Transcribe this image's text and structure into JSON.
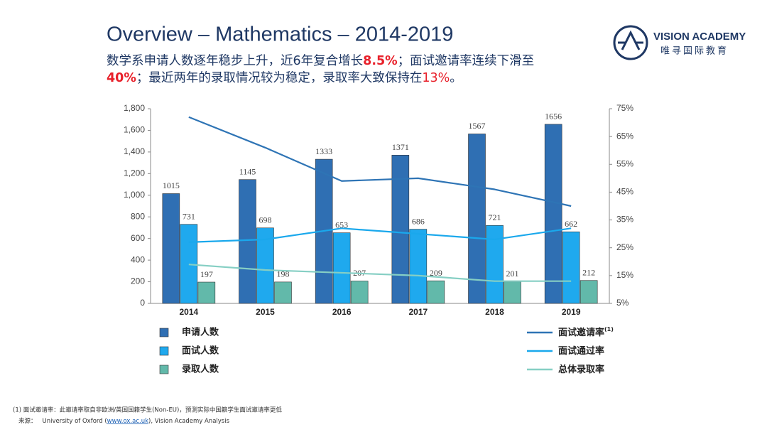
{
  "logo": {
    "name": "VISION ACADEMY",
    "subname": "唯寻国际教育"
  },
  "chart_data": {
    "type": "bar",
    "title": "Overview – Mathematics – 2014-2019",
    "subtitle_lines": [
      [
        {
          "text": "数学系申请人数逐年稳步上升，近6年复合增长",
          "highlight": false,
          "bold": false
        },
        {
          "text": "8.5%",
          "highlight": true,
          "bold": true
        },
        {
          "text": "；面试邀请率连续下滑至",
          "highlight": false,
          "bold": false
        }
      ],
      [
        {
          "text": "40%",
          "highlight": true,
          "bold": true
        },
        {
          "text": "；最近两年的录取情况较为稳定，录取率大致保持在",
          "highlight": false,
          "bold": false
        },
        {
          "text": "13%",
          "highlight": true,
          "bold": false
        },
        {
          "text": "。",
          "highlight": false,
          "bold": false
        }
      ]
    ],
    "categories": [
      "2014",
      "2015",
      "2016",
      "2017",
      "2018",
      "2019"
    ],
    "series": [
      {
        "name": "申请人数",
        "color": "#2f6fb3",
        "values": [
          1015,
          1145,
          1333,
          1371,
          1567,
          1656
        ]
      },
      {
        "name": "面试人数",
        "color": "#1fa9ee",
        "values": [
          731,
          698,
          653,
          686,
          721,
          662
        ]
      },
      {
        "name": "录取人数",
        "color": "#62b9aa",
        "values": [
          197,
          198,
          207,
          209,
          201,
          212
        ]
      },
      {
        "name": "面试邀请率",
        "note": "(1)",
        "type": "line",
        "axis": "y2",
        "color": "#2e74b5",
        "values": [
          72,
          61,
          49,
          50,
          46,
          40
        ]
      },
      {
        "name": "面试通过率",
        "type": "line",
        "axis": "y2",
        "color": "#1aa8ec",
        "values": [
          27,
          28,
          32,
          30,
          28,
          32
        ]
      },
      {
        "name": "总体录取率",
        "type": "line",
        "axis": "y2",
        "color": "#86cfc4",
        "values": [
          19,
          17,
          16,
          15,
          13,
          13
        ]
      }
    ],
    "ylim": [
      0,
      1800
    ],
    "yticks": [
      0,
      200,
      400,
      600,
      800,
      {
        "value": 1000,
        "label": "1,000"
      },
      {
        "value": 1200,
        "label": "1,200"
      },
      {
        "value": 1400,
        "label": "1,400"
      },
      {
        "value": 1600,
        "label": "1,600"
      },
      {
        "value": 1800,
        "label": "1,800"
      }
    ],
    "y2lim": [
      5,
      75
    ],
    "y2ticks": [
      {
        "value": 5,
        "label": "5%"
      },
      {
        "value": 15,
        "label": "15%"
      },
      {
        "value": 25,
        "label": "25%"
      },
      {
        "value": 35,
        "label": "35%"
      },
      {
        "value": 45,
        "label": "45%"
      },
      {
        "value": 55,
        "label": "55%"
      },
      {
        "value": 65,
        "label": "65%"
      },
      {
        "value": 75,
        "label": "75%"
      }
    ],
    "grid": false,
    "highlight_color": "#e8202a"
  },
  "footnote": {
    "note": "(1) 面试邀请率：此邀请率取自非欧洲/英国国籍学生(Non-EU)，预测实际中国籍学生面试邀请率更低",
    "source_label": "来源：",
    "source_text": "University of Oxford (",
    "source_link": "www.ox.ac.uk",
    "source_rest": "), Vision Academy Analysis"
  }
}
